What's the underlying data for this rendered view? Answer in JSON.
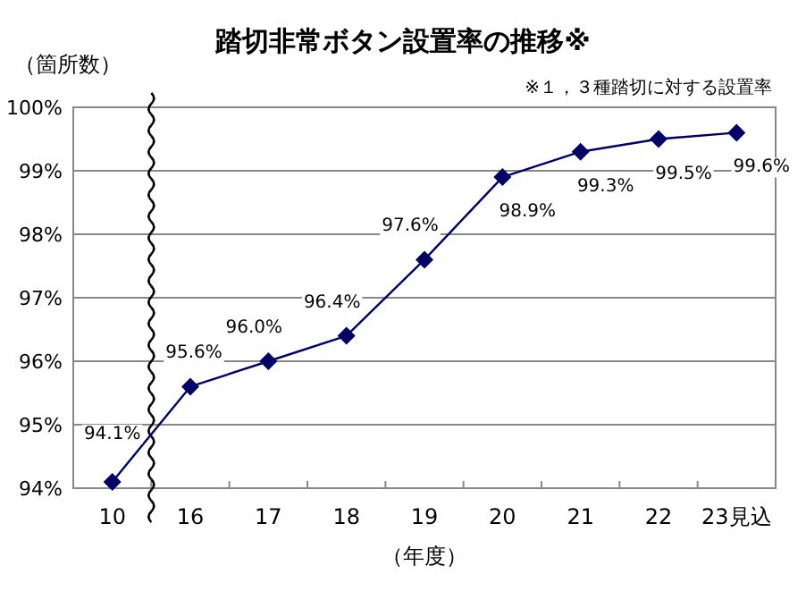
{
  "chart_data": {
    "type": "line",
    "title": "踏切非常ボタン設置率の推移※",
    "ylabel": "（箇所数）",
    "xlabel": "（年度）",
    "annotations": [
      "※１，３種踏切に対する設置率"
    ],
    "categories": [
      "10",
      "16",
      "17",
      "18",
      "19",
      "20",
      "21",
      "22",
      "23見込"
    ],
    "series": [
      {
        "color": "#000066",
        "values": [
          94.1,
          95.6,
          96.0,
          96.4,
          97.6,
          98.9,
          99.3,
          99.5,
          99.6
        ],
        "value_labels": [
          "94.1%",
          "95.6%",
          "96.0%",
          "96.4%",
          "97.6%",
          "98.9%",
          "99.3%",
          "99.5%",
          "99.6%"
        ]
      }
    ],
    "ylim": [
      94,
      100
    ],
    "yticks": [
      {
        "value": 94,
        "label": "94%"
      },
      {
        "value": 95,
        "label": "95%"
      },
      {
        "value": 96,
        "label": "96%"
      },
      {
        "value": 97,
        "label": "97%"
      },
      {
        "value": 98,
        "label": "98%"
      },
      {
        "value": 99,
        "label": "99%"
      },
      {
        "value": 100,
        "label": "100%"
      }
    ],
    "grid": "y",
    "marker": "diamond",
    "line_style": "solid"
  }
}
